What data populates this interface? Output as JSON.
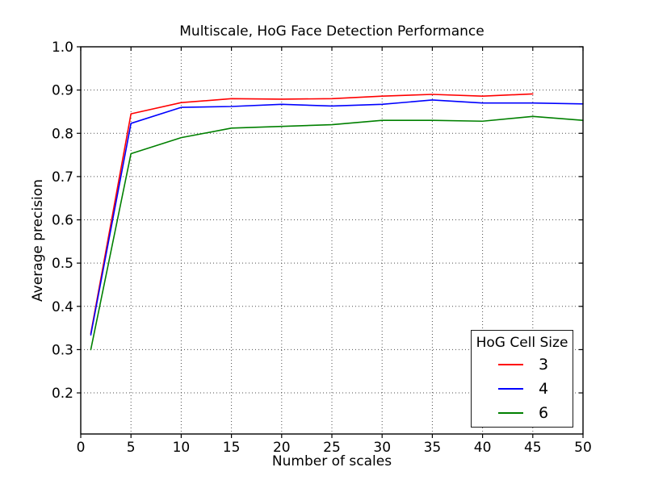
{
  "figure": {
    "title": "Multiscale, HoG Face Detection Performance",
    "xlabel": "Number of scales",
    "ylabel": "Average precision"
  },
  "legend": {
    "title": "HoG Cell Size",
    "entries": [
      {
        "label": "3",
        "color": "#ff0000"
      },
      {
        "label": "4",
        "color": "#0000ff"
      },
      {
        "label": "6",
        "color": "#008000"
      }
    ]
  },
  "chart_data": {
    "type": "line",
    "title": "Multiscale, HoG Face Detection Performance",
    "xlabel": "Number of scales",
    "ylabel": "Average precision",
    "xlim": [
      0,
      50
    ],
    "ylim": [
      0.105,
      1.0
    ],
    "xticks": [
      0,
      5,
      10,
      15,
      20,
      25,
      30,
      35,
      40,
      45,
      50
    ],
    "yticks": [
      0.2,
      0.3,
      0.4,
      0.5,
      0.6,
      0.7,
      0.8,
      0.9,
      1.0
    ],
    "grid": true,
    "grid_linestyle": "dotted",
    "legend_title": "HoG Cell Size",
    "legend_position": "lower right",
    "series": [
      {
        "name": "3",
        "color": "#ff0000",
        "x": [
          1,
          5,
          10,
          15,
          20,
          25,
          30,
          35,
          40,
          45
        ],
        "y": [
          0.337,
          0.845,
          0.871,
          0.88,
          0.879,
          0.88,
          0.886,
          0.89,
          0.886,
          0.891
        ]
      },
      {
        "name": "4",
        "color": "#0000ff",
        "x": [
          1,
          5,
          10,
          15,
          20,
          25,
          30,
          35,
          40,
          45,
          50
        ],
        "y": [
          0.334,
          0.823,
          0.86,
          0.862,
          0.867,
          0.863,
          0.867,
          0.877,
          0.87,
          0.87,
          0.868
        ]
      },
      {
        "name": "6",
        "color": "#008000",
        "x": [
          1,
          5,
          10,
          15,
          20,
          25,
          30,
          35,
          40,
          45,
          50
        ],
        "y": [
          0.3,
          0.753,
          0.79,
          0.812,
          0.816,
          0.82,
          0.83,
          0.83,
          0.828,
          0.839,
          0.83
        ]
      }
    ]
  }
}
